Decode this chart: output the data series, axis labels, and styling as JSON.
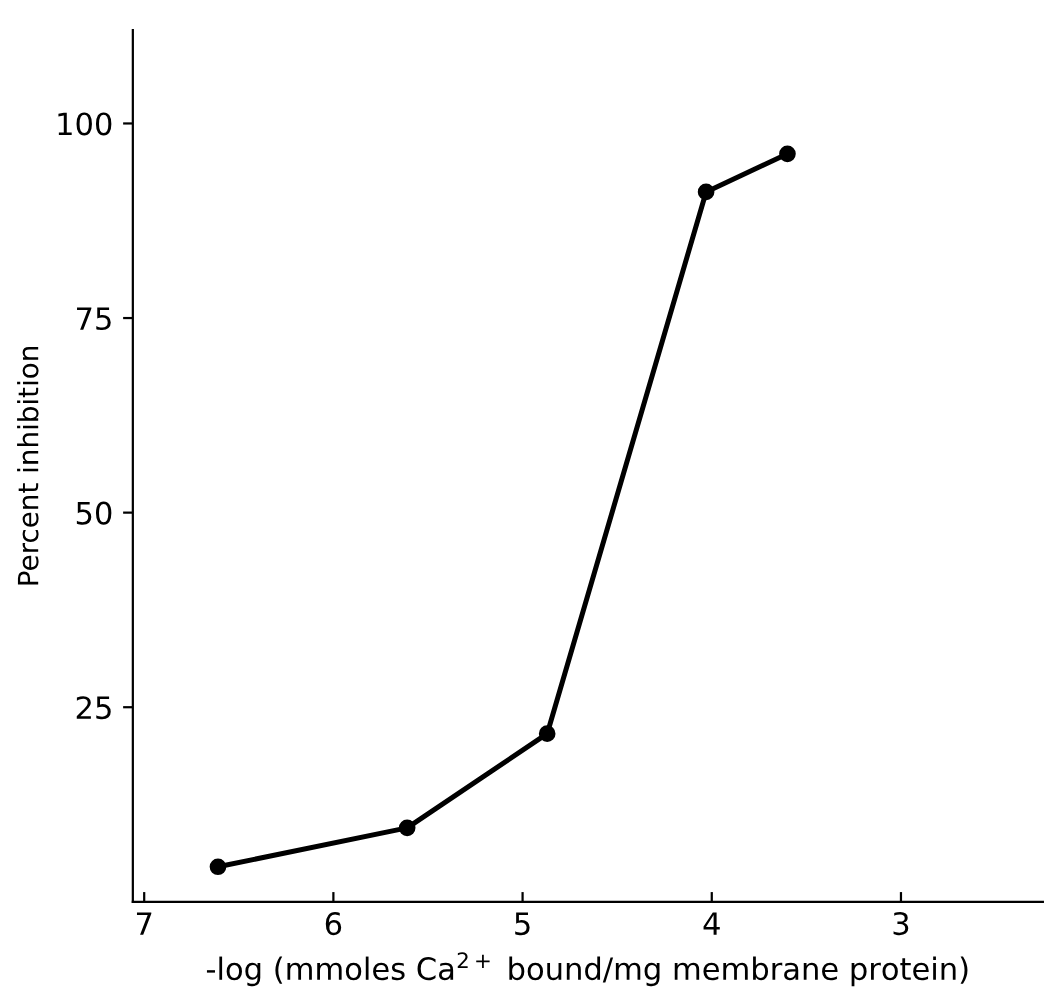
{
  "chart_data": {
    "type": "line",
    "xlabel": "-log (mmoles Ca$^{2+}$ bound/mg membrane protein)",
    "ylabel": "Percent inhibition",
    "x": [
      6.61,
      5.61,
      4.87,
      4.03,
      3.6
    ],
    "series": [
      {
        "color": "#000000",
        "values": [
          4.5,
          9.5,
          21.6,
          91.2,
          96.1
        ]
      }
    ],
    "xlim": [
      7.06,
      2.25
    ],
    "ylim": [
      0,
      112
    ],
    "xticks": [
      7,
      6,
      5,
      4,
      3
    ],
    "yticks": [
      25,
      50,
      75,
      100
    ],
    "marker": "circle",
    "line_style": "solid",
    "grid": false,
    "legend": false
  }
}
